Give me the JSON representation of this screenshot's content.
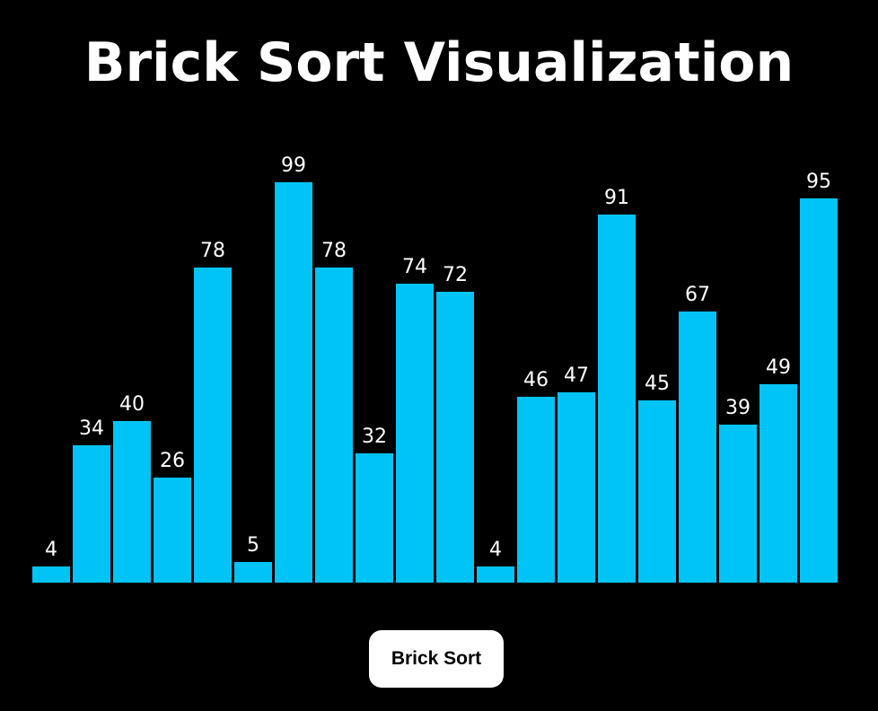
{
  "page": {
    "title": "Brick Sort Visualization"
  },
  "colors": {
    "background": "#000000",
    "bar": "#00c4f5",
    "label": "#ffffff",
    "button_bg": "#ffffff",
    "button_text": "#000000"
  },
  "chart_data": {
    "type": "bar",
    "values": [
      4,
      34,
      40,
      26,
      78,
      5,
      99,
      78,
      32,
      74,
      72,
      4,
      46,
      47,
      91,
      45,
      67,
      39,
      49,
      95
    ],
    "ylim": [
      0,
      100
    ],
    "data_labels": "above-bar",
    "grid": false,
    "axes": false
  },
  "controls": {
    "sort_button_label": "Brick Sort"
  }
}
